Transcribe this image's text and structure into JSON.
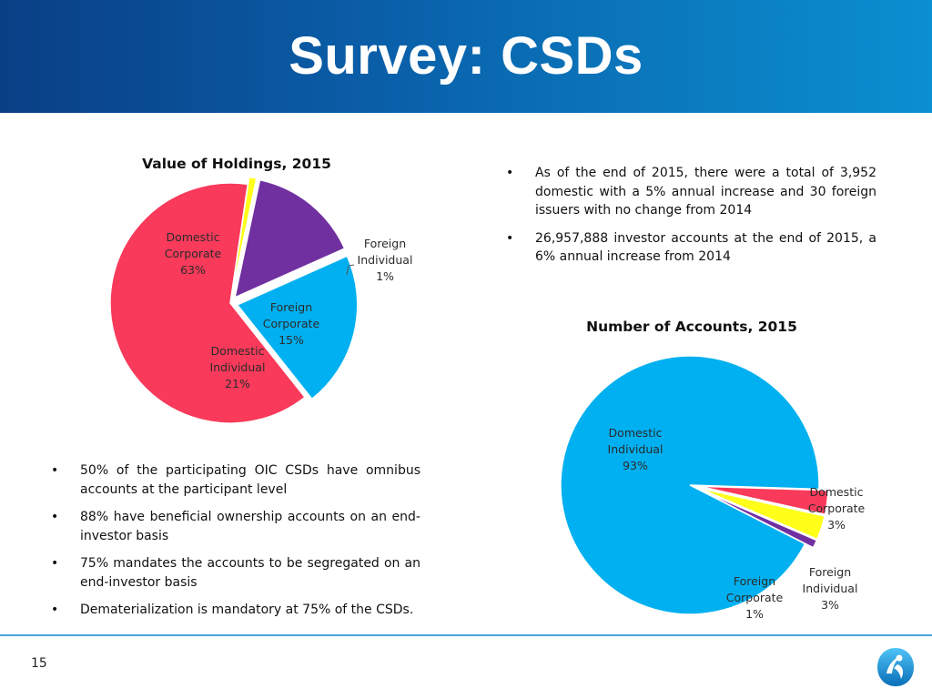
{
  "title": "Survey: CSDs",
  "page_number": "15",
  "right_bullets": [
    "As of the end of 2015, there were a total of 3,952 domestic with a 5% annual increase and 30 foreign issuers with no change from 2014",
    "26,957,888 investor accounts at the end of 2015, a 6% annual increase from 2014"
  ],
  "left_bullets": [
    "50% of the participating OIC CSDs have omnibus accounts at the participant level",
    "88% have beneficial ownership accounts on an end-investor basis",
    "75% mandates the accounts to be segregated on an end-investor basis",
    "Dematerialization is mandatory at 75% of the CSDs."
  ],
  "bullet_symbol": "•",
  "colors": {
    "domestic_corporate": "#f93a5a",
    "foreign_individual": "#ffff1a",
    "foreign_corporate": "#7030a0",
    "domestic_individual": "#00b0f0"
  },
  "chart_data": [
    {
      "type": "pie",
      "title": "Value of Holdings, 2015",
      "slices": [
        {
          "label": "Domestic Corporate",
          "label_lines": [
            "Domestic",
            "Corporate",
            "63%"
          ],
          "value": 63,
          "color": "#f93a5a"
        },
        {
          "label": "Foreign Individual",
          "label_lines": [
            "Foreign",
            "Individual",
            "1%"
          ],
          "value": 1,
          "color": "#ffff1a"
        },
        {
          "label": "Foreign Corporate",
          "label_lines": [
            "Foreign",
            "Corporate",
            "15%"
          ],
          "value": 15,
          "color": "#7030a0"
        },
        {
          "label": "Domestic Individual",
          "label_lines": [
            "Domestic",
            "Individual",
            "21%"
          ],
          "value": 21,
          "color": "#00b0f0"
        }
      ]
    },
    {
      "type": "pie",
      "title": "Number of Accounts, 2015",
      "slices": [
        {
          "label": "Domestic Individual",
          "label_lines": [
            "Domestic",
            "Individual",
            "93%"
          ],
          "value": 93,
          "color": "#00b0f0"
        },
        {
          "label": "Domestic Corporate",
          "label_lines": [
            "Domestic",
            "Corporate",
            "3%"
          ],
          "value": 3,
          "color": "#f93a5a"
        },
        {
          "label": "Foreign Individual",
          "label_lines": [
            "Foreign",
            "Individual",
            "3%"
          ],
          "value": 3,
          "color": "#ffff1a"
        },
        {
          "label": "Foreign Corporate",
          "label_lines": [
            "Foreign",
            "Corporate",
            "1%"
          ],
          "value": 1,
          "color": "#7030a0"
        }
      ]
    }
  ]
}
